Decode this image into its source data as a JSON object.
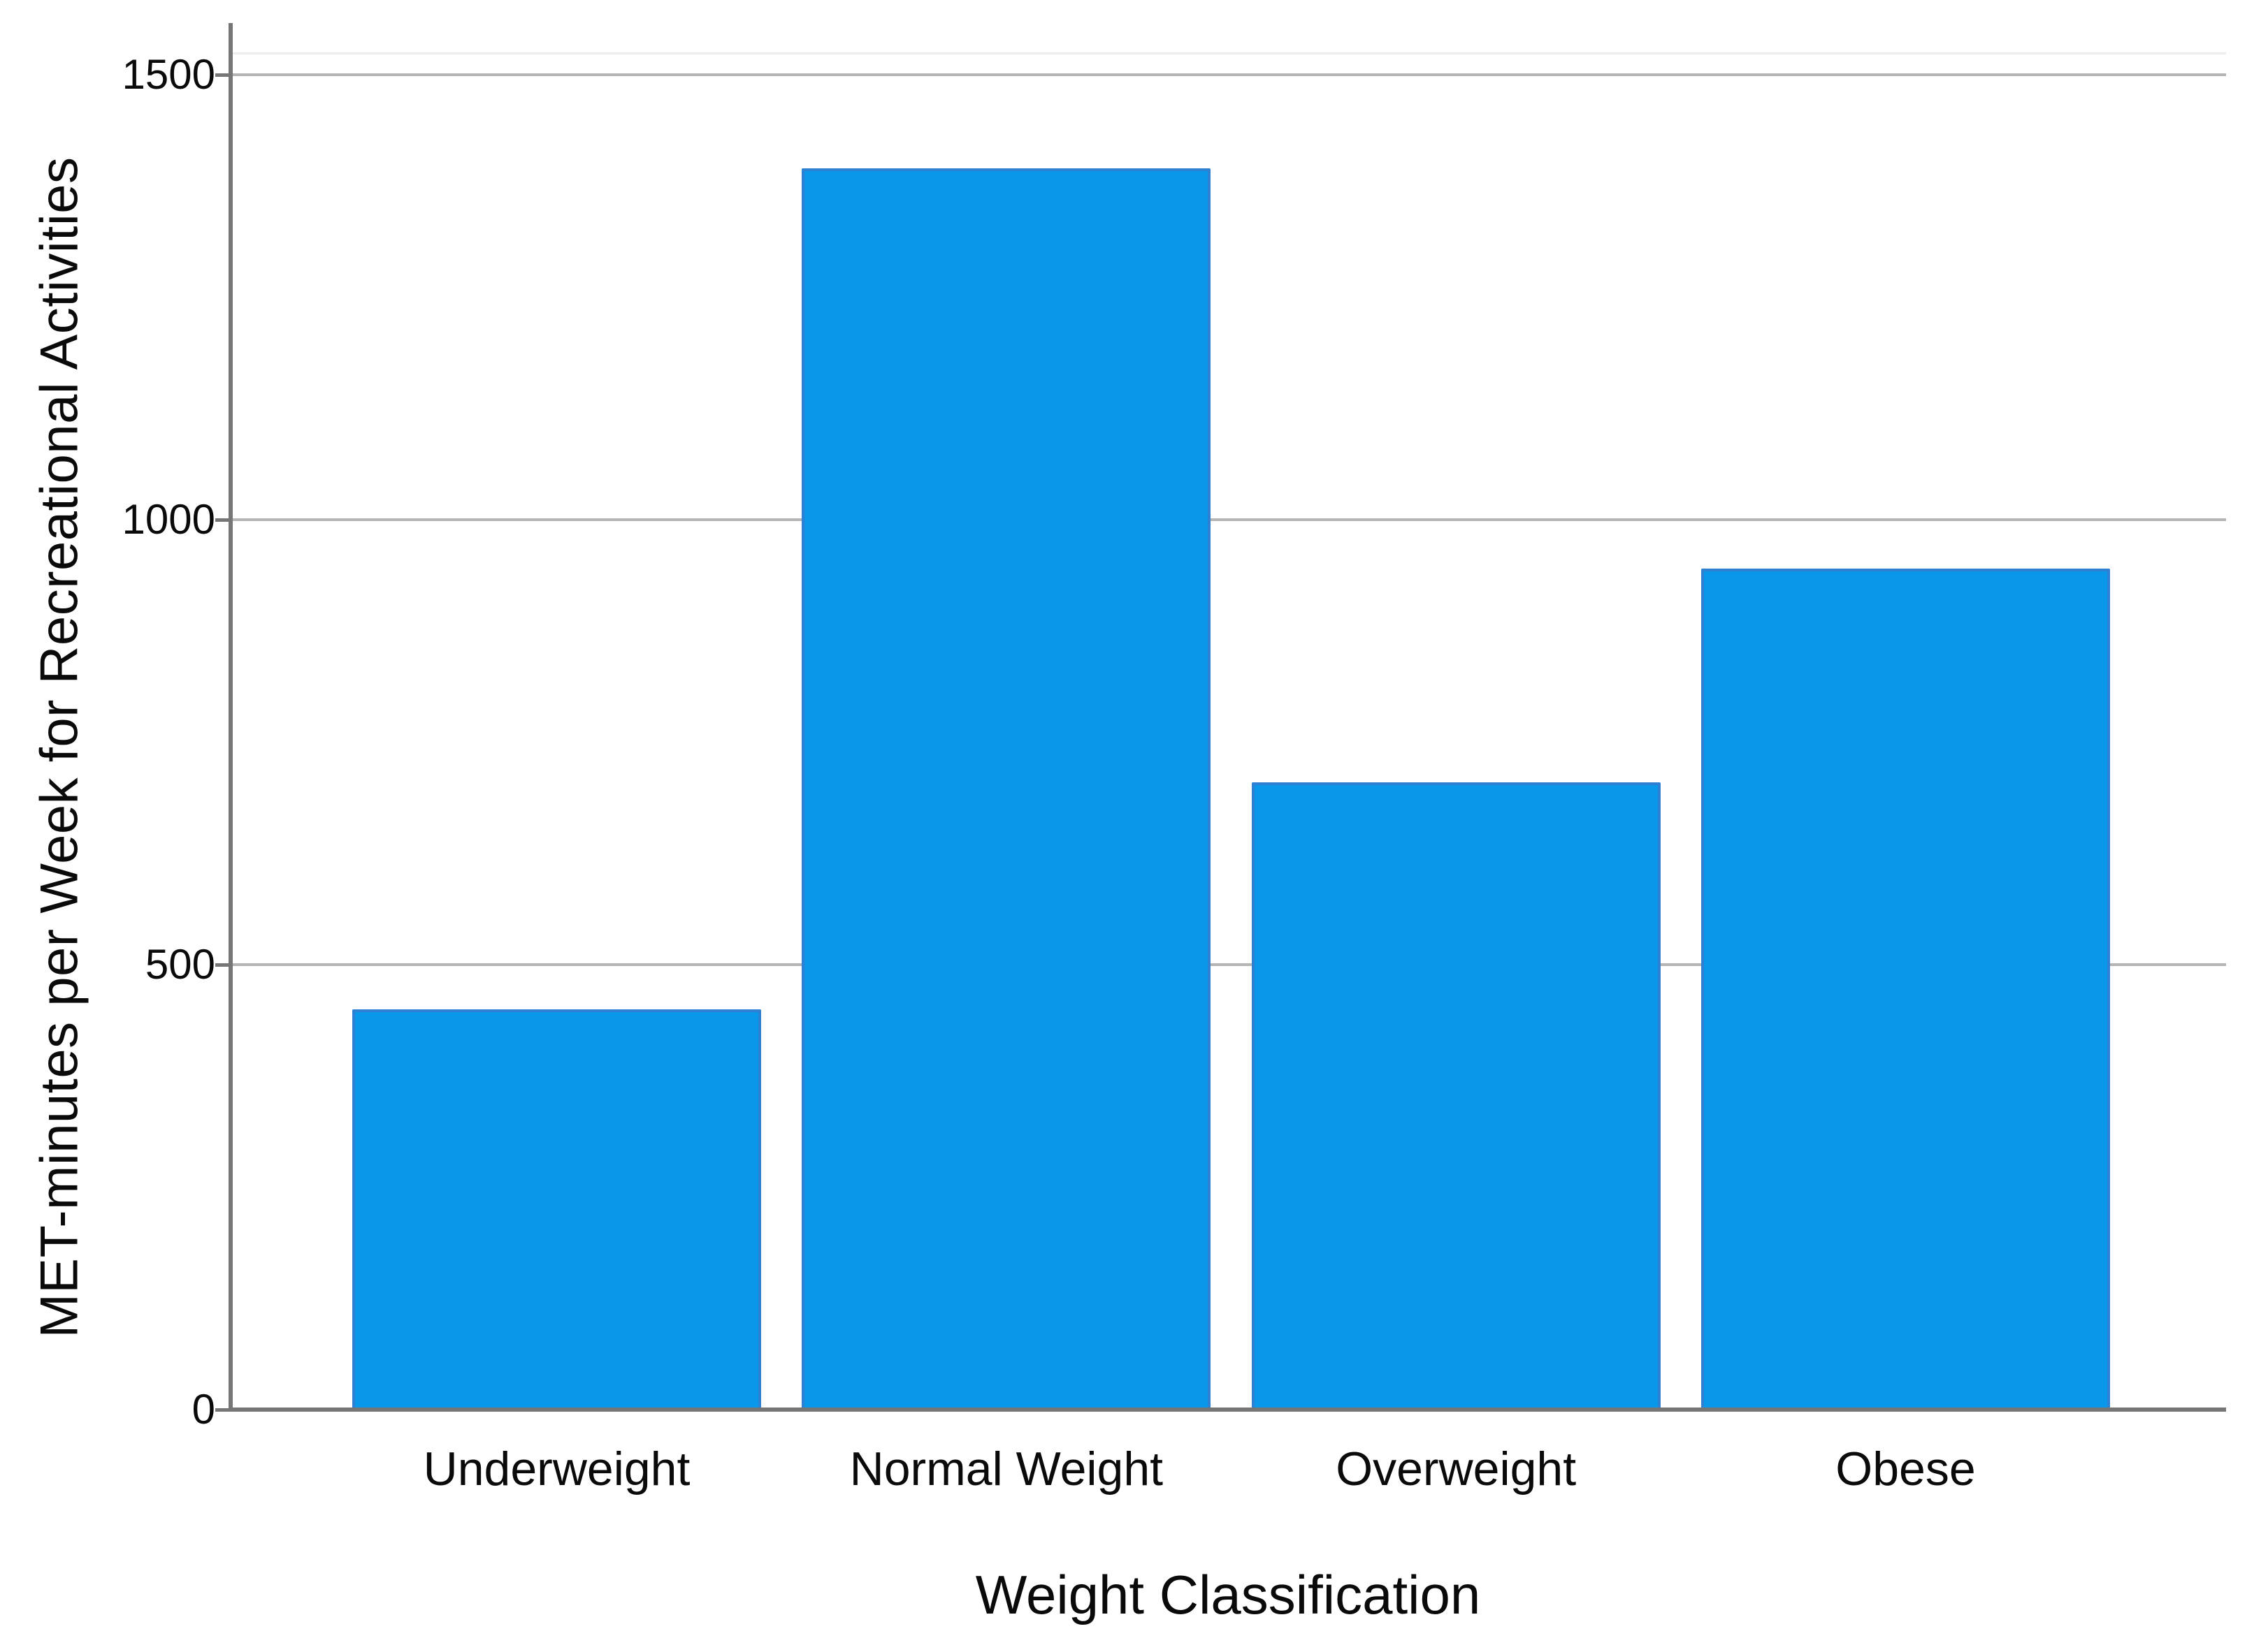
{
  "chart_data": {
    "type": "bar",
    "title": "",
    "categories": [
      "Underweight",
      "Normal Weight",
      "Overweight",
      "Obese"
    ],
    "values": [
      450,
      1395,
      705,
      945
    ],
    "xlabel": "Weight Classification",
    "ylabel": "MET-minutes per Week for Recreational Activities",
    "ylim": [
      0,
      1500
    ],
    "yticks": [
      0,
      500,
      1000,
      1500
    ],
    "grid": true,
    "legend": false,
    "colors": {
      "bar_fill": "#0997e9",
      "bar_border": "#2d80d2",
      "axis_line": "#767676",
      "gridline": "#b5b5b5",
      "frame_faint": "#ededed",
      "text": "#0a0a0a",
      "background": "#ffffff"
    }
  }
}
